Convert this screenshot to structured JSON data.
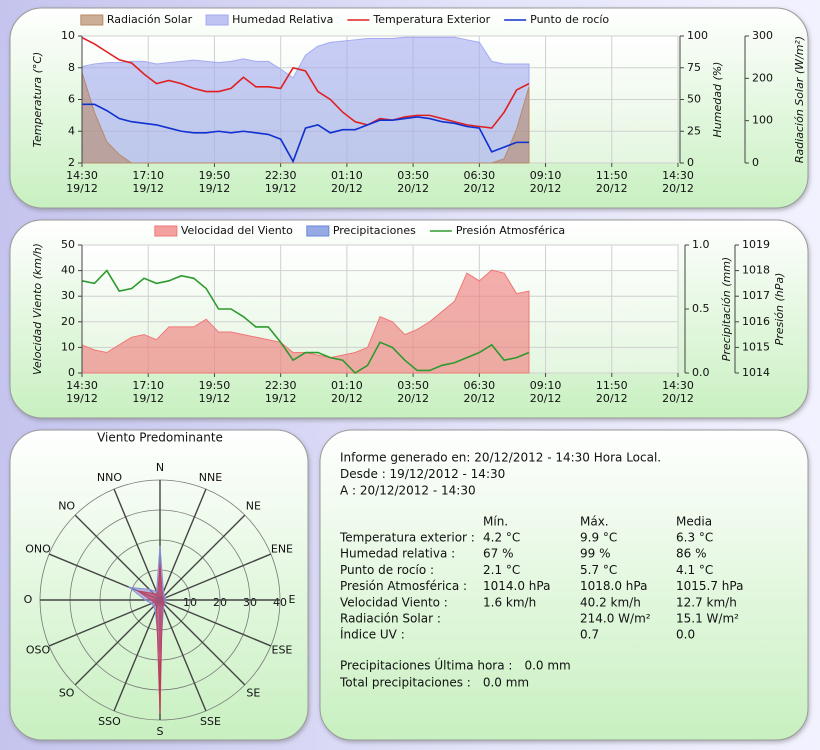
{
  "chart_data": [
    {
      "type": "line",
      "grid": true,
      "ylabel": "Temperatura (°C)",
      "y2label": "Humedad (%)",
      "y3label": "Radiación Solar (W/m²)",
      "xlim": [
        "2012-12-19T14:30",
        "2012-12-20T14:30"
      ],
      "xticks": [
        {
          "value": "2012-12-19T14:30",
          "label": [
            "14:30",
            "19/12"
          ]
        },
        {
          "value": "2012-12-19T17:10",
          "label": [
            "17:10",
            "19/12"
          ]
        },
        {
          "value": "2012-12-19T19:50",
          "label": [
            "19:50",
            "19/12"
          ]
        },
        {
          "value": "2012-12-19T22:30",
          "label": [
            "22:30",
            "19/12"
          ]
        },
        {
          "value": "2012-12-20T01:10",
          "label": [
            "01:10",
            "20/12"
          ]
        },
        {
          "value": "2012-12-20T03:50",
          "label": [
            "03:50",
            "20/12"
          ]
        },
        {
          "value": "2012-12-20T06:30",
          "label": [
            "06:30",
            "20/12"
          ]
        },
        {
          "value": "2012-12-20T09:10",
          "label": [
            "09:10",
            "20/12"
          ]
        },
        {
          "value": "2012-12-20T11:50",
          "label": [
            "11:50",
            "20/12"
          ]
        },
        {
          "value": "2012-12-20T14:30",
          "label": [
            "14:30",
            "20/12"
          ]
        }
      ],
      "ylim": [
        2,
        10
      ],
      "yticks": [
        2,
        4,
        6,
        8,
        10
      ],
      "y2lim": [
        0,
        100
      ],
      "y2ticks": [
        0,
        25,
        50,
        75,
        100
      ],
      "y3lim": [
        0,
        300
      ],
      "y3ticks": [
        0,
        100,
        200,
        300
      ],
      "x": [
        "2012-12-19T14:30",
        "2012-12-19T15:00",
        "2012-12-19T15:30",
        "2012-12-19T16:00",
        "2012-12-19T16:30",
        "2012-12-19T17:00",
        "2012-12-19T17:30",
        "2012-12-19T18:00",
        "2012-12-19T18:30",
        "2012-12-19T19:00",
        "2012-12-19T19:30",
        "2012-12-19T20:00",
        "2012-12-19T20:30",
        "2012-12-19T21:00",
        "2012-12-19T21:30",
        "2012-12-19T22:00",
        "2012-12-19T22:30",
        "2012-12-19T23:00",
        "2012-12-19T23:30",
        "2012-12-20T00:00",
        "2012-12-20T00:30",
        "2012-12-20T01:00",
        "2012-12-20T01:30",
        "2012-12-20T02:00",
        "2012-12-20T02:30",
        "2012-12-20T03:00",
        "2012-12-20T03:30",
        "2012-12-20T04:00",
        "2012-12-20T04:30",
        "2012-12-20T05:00",
        "2012-12-20T05:30",
        "2012-12-20T06:00",
        "2012-12-20T06:30",
        "2012-12-20T07:00",
        "2012-12-20T07:30",
        "2012-12-20T08:00",
        "2012-12-20T08:30"
      ],
      "series": [
        {
          "name": "Radiación Solar",
          "style": "area",
          "axis": "y3",
          "color": "#b88a6a",
          "values": [
            214,
            120,
            50,
            20,
            0,
            0,
            0,
            0,
            0,
            0,
            0,
            0,
            0,
            0,
            0,
            0,
            0,
            0,
            0,
            0,
            0,
            0,
            0,
            0,
            0,
            0,
            0,
            0,
            0,
            0,
            0,
            0,
            0,
            0,
            10,
            80,
            180
          ]
        },
        {
          "name": "Humedad Relativa",
          "style": "area",
          "axis": "y2",
          "color": "#a4aaf0",
          "values": [
            76,
            78,
            79,
            79,
            80,
            80,
            78,
            79,
            80,
            81,
            80,
            79,
            80,
            82,
            80,
            80,
            74,
            67,
            85,
            92,
            95,
            96,
            97,
            98,
            98,
            98,
            99,
            99,
            99,
            99,
            99,
            97,
            95,
            80,
            78,
            78,
            78
          ]
        },
        {
          "name": "Temperatura Exterior",
          "style": "line",
          "axis": "y",
          "color": "#e02020",
          "values": [
            9.9,
            9.5,
            9.0,
            8.5,
            8.3,
            7.6,
            7.0,
            7.2,
            7.0,
            6.7,
            6.5,
            6.5,
            6.7,
            7.4,
            6.8,
            6.8,
            6.7,
            8.0,
            7.8,
            6.5,
            6.0,
            5.2,
            4.6,
            4.4,
            4.8,
            4.7,
            4.9,
            5.0,
            5.0,
            4.8,
            4.6,
            4.4,
            4.3,
            4.2,
            5.2,
            6.6,
            7.0
          ]
        },
        {
          "name": "Punto de rocío",
          "style": "line",
          "axis": "y",
          "color": "#1030d0",
          "values": [
            5.7,
            5.7,
            5.3,
            4.8,
            4.6,
            4.5,
            4.4,
            4.2,
            4.0,
            3.9,
            3.9,
            4.0,
            3.9,
            4.0,
            3.9,
            3.8,
            3.5,
            2.1,
            4.2,
            4.4,
            3.9,
            4.1,
            4.1,
            4.4,
            4.7,
            4.7,
            4.8,
            4.9,
            4.8,
            4.6,
            4.5,
            4.3,
            4.2,
            2.7,
            3.0,
            3.3,
            3.3
          ]
        }
      ]
    },
    {
      "type": "line",
      "grid": true,
      "ylabel": "Velocidad Viento (km/h)",
      "y2label": "Precipitación (mm)",
      "y3label": "Presión (hPa)",
      "xlim": [
        "2012-12-19T14:30",
        "2012-12-20T14:30"
      ],
      "xticks": [
        {
          "value": "2012-12-19T14:30",
          "label": [
            "14:30",
            "19/12"
          ]
        },
        {
          "value": "2012-12-19T17:10",
          "label": [
            "17:10",
            "19/12"
          ]
        },
        {
          "value": "2012-12-19T19:50",
          "label": [
            "19:50",
            "19/12"
          ]
        },
        {
          "value": "2012-12-19T22:30",
          "label": [
            "22:30",
            "19/12"
          ]
        },
        {
          "value": "2012-12-20T01:10",
          "label": [
            "01:10",
            "20/12"
          ]
        },
        {
          "value": "2012-12-20T03:50",
          "label": [
            "03:50",
            "20/12"
          ]
        },
        {
          "value": "2012-12-20T06:30",
          "label": [
            "06:30",
            "20/12"
          ]
        },
        {
          "value": "2012-12-20T09:10",
          "label": [
            "09:10",
            "20/12"
          ]
        },
        {
          "value": "2012-12-20T11:50",
          "label": [
            "11:50",
            "20/12"
          ]
        },
        {
          "value": "2012-12-20T14:30",
          "label": [
            "14:30",
            "20/12"
          ]
        }
      ],
      "ylim": [
        0,
        50
      ],
      "yticks": [
        0,
        10,
        20,
        30,
        40,
        50
      ],
      "y2lim": [
        0,
        1
      ],
      "y2ticks": [
        {
          "value": 0,
          "label": "0.0"
        },
        {
          "value": 0.5,
          "label": "0.5"
        },
        {
          "value": 1,
          "label": "1.0"
        }
      ],
      "y3lim": [
        1014,
        1019
      ],
      "y3ticks": [
        1014,
        1015,
        1016,
        1017,
        1018,
        1019
      ],
      "x": [
        "2012-12-19T14:30",
        "2012-12-19T15:00",
        "2012-12-19T15:30",
        "2012-12-19T16:00",
        "2012-12-19T16:30",
        "2012-12-19T17:00",
        "2012-12-19T17:30",
        "2012-12-19T18:00",
        "2012-12-19T18:30",
        "2012-12-19T19:00",
        "2012-12-19T19:30",
        "2012-12-19T20:00",
        "2012-12-19T20:30",
        "2012-12-19T21:00",
        "2012-12-19T21:30",
        "2012-12-19T22:00",
        "2012-12-19T22:30",
        "2012-12-19T23:00",
        "2012-12-19T23:30",
        "2012-12-20T00:00",
        "2012-12-20T00:30",
        "2012-12-20T01:00",
        "2012-12-20T01:30",
        "2012-12-20T02:00",
        "2012-12-20T02:30",
        "2012-12-20T03:00",
        "2012-12-20T03:30",
        "2012-12-20T04:00",
        "2012-12-20T04:30",
        "2012-12-20T05:00",
        "2012-12-20T05:30",
        "2012-12-20T06:00",
        "2012-12-20T06:30",
        "2012-12-20T07:00",
        "2012-12-20T07:30",
        "2012-12-20T08:00",
        "2012-12-20T08:30"
      ],
      "series": [
        {
          "name": "Velocidad del Viento",
          "style": "area",
          "axis": "y",
          "color": "#f07878",
          "values": [
            11,
            9,
            8,
            11,
            14,
            15,
            13,
            18,
            18,
            18,
            21,
            16,
            16,
            15,
            14,
            13,
            12,
            8,
            8,
            7,
            6,
            7,
            8,
            10,
            22,
            20,
            15,
            17,
            20,
            24,
            28,
            39,
            36,
            40.2,
            39,
            31,
            32
          ]
        },
        {
          "name": "Precipitaciones",
          "style": "area",
          "axis": "y2",
          "color": "#6a86d8",
          "values": [
            0,
            0,
            0,
            0,
            0,
            0,
            0,
            0,
            0,
            0,
            0,
            0,
            0,
            0,
            0,
            0,
            0,
            0,
            0,
            0,
            0,
            0,
            0,
            0,
            0,
            0,
            0,
            0,
            0,
            0,
            0,
            0,
            0,
            0,
            0,
            0,
            0
          ]
        },
        {
          "name": "Presión Atmosférica",
          "style": "line",
          "axis": "y3",
          "color": "#2e9a2e",
          "values": [
            1017.6,
            1017.5,
            1018.0,
            1017.2,
            1017.3,
            1017.7,
            1017.5,
            1017.6,
            1017.8,
            1017.7,
            1017.3,
            1016.5,
            1016.5,
            1016.2,
            1015.8,
            1015.8,
            1015.2,
            1014.5,
            1014.8,
            1014.8,
            1014.6,
            1014.5,
            1014.0,
            1014.3,
            1015.2,
            1015.0,
            1014.5,
            1014.1,
            1014.1,
            1014.3,
            1014.4,
            1014.6,
            1014.8,
            1015.1,
            1014.5,
            1014.6,
            1014.8
          ]
        }
      ]
    },
    {
      "type": "polar",
      "title": "Viento Predominante",
      "categories": [
        "N",
        "NNE",
        "NE",
        "ENE",
        "E",
        "ESE",
        "SE",
        "SSE",
        "S",
        "SSO",
        "SO",
        "OSO",
        "O",
        "ONO",
        "NO",
        "NNO"
      ],
      "rlim": [
        0,
        40
      ],
      "rticks": [
        10,
        20,
        30,
        40
      ],
      "series": [
        {
          "color": "#8c8cd8",
          "values": [
            18,
            3,
            2,
            2,
            2,
            2,
            2,
            3,
            20,
            4,
            3,
            3,
            5,
            11,
            5,
            3
          ]
        },
        {
          "color": "#c83a5a",
          "values": [
            12,
            2,
            1,
            1,
            1,
            1,
            2,
            2,
            38,
            3,
            2,
            2,
            3,
            8,
            3,
            2
          ]
        }
      ]
    }
  ],
  "report": {
    "header": [
      "Informe generado en: 20/12/2012 - 14:30 Hora Local.",
      "Desde : 19/12/2012 - 14:30",
      "A : 20/12/2012 - 14:30"
    ],
    "columns": [
      "Mín.",
      "Máx.",
      "Media"
    ],
    "rows": [
      [
        "Temperatura exterior :",
        "4.2 °C",
        "9.9 °C",
        "6.3 °C"
      ],
      [
        "Humedad relativa :",
        "67 %",
        "99 %",
        "86 %"
      ],
      [
        "Punto de rocío :",
        "2.1 °C",
        "5.7 °C",
        "4.1 °C"
      ],
      [
        "Presión Atmosférica :",
        "1014.0 hPa",
        "1018.0 hPa",
        "1015.7 hPa"
      ],
      [
        "Velocidad Viento :",
        "1.6 km/h",
        "40.2 km/h",
        "12.7 km/h"
      ],
      [
        "Radiación Solar :",
        null,
        "214.0 W/m²",
        "15.1 W/m²"
      ],
      [
        "Índice UV :",
        null,
        "0.7",
        "0.0"
      ]
    ],
    "precipitation": [
      [
        "Precipitaciones Última hora :",
        "0.0 mm"
      ],
      [
        "Total precipitaciones :",
        "0.0 mm"
      ]
    ]
  }
}
